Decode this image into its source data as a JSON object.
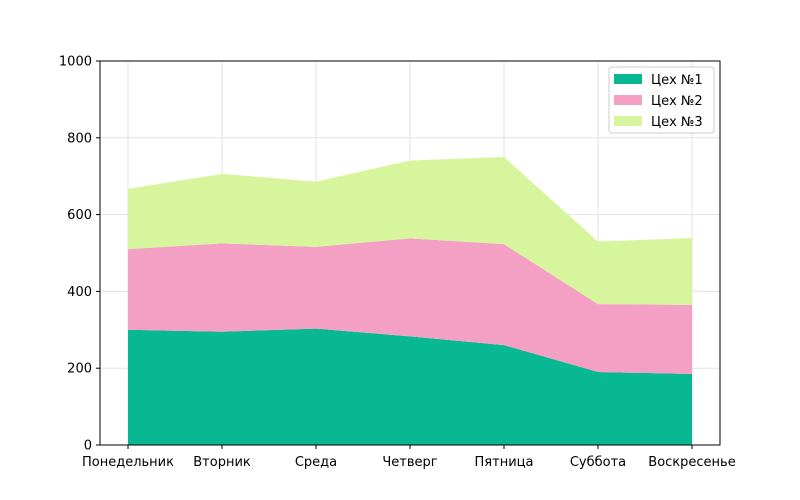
{
  "chart_data": {
    "type": "area",
    "stacked": true,
    "title": "",
    "xlabel": "",
    "ylabel": "",
    "ylim": [
      0,
      1000
    ],
    "yticks": [
      0,
      200,
      400,
      600,
      800,
      1000
    ],
    "grid": true,
    "legend_position": "top-right",
    "categories": [
      "Понедельник",
      "Вторник",
      "Среда",
      "Четверг",
      "Пятница",
      "Суббота",
      "Воскресенье"
    ],
    "series": [
      {
        "name": "Цех №1",
        "color": "#07b892",
        "values": [
          300,
          295,
          303,
          283,
          260,
          190,
          185
        ]
      },
      {
        "name": "Цех №2",
        "color": "#f49fc4",
        "values": [
          210,
          230,
          213,
          255,
          263,
          177,
          180
        ]
      },
      {
        "name": "Цех №3",
        "color": "#d7f59c",
        "values": [
          157,
          181,
          170,
          203,
          227,
          163,
          174
        ]
      }
    ]
  }
}
